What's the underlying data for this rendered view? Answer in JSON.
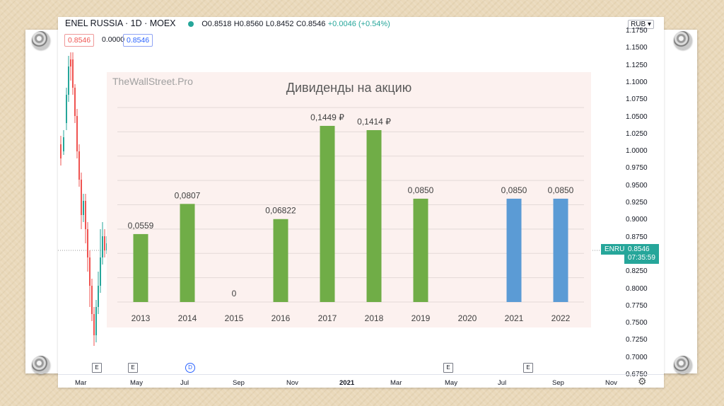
{
  "header": {
    "symbol": "ENEL RUSSIA · 1D · MOEX",
    "open": "O0.8518",
    "high": "H0.8560",
    "low": "L0.8452",
    "close": "C0.8546",
    "change": "+0.0046 (+0.54%)"
  },
  "pills": {
    "red": "0.8546",
    "plain": "0.0000",
    "blue": "0.8546"
  },
  "currency": "RUB",
  "price_axis": [
    "1.1750",
    "1.1500",
    "1.1250",
    "1.1000",
    "1.0750",
    "1.0500",
    "1.0250",
    "1.0000",
    "0.9750",
    "0.9500",
    "0.9250",
    "0.9000",
    "0.8750",
    "0.8500",
    "0.8250",
    "0.8000",
    "0.7750",
    "0.7500",
    "0.7250",
    "0.7000",
    "0.6750"
  ],
  "last_price": {
    "ticker": "ENRU",
    "price": "0.8546",
    "time": "07:35:59"
  },
  "time_axis": [
    "Mar",
    "May",
    "Jul",
    "Sep",
    "Nov",
    "2021",
    "Mar",
    "May",
    "Jul",
    "Sep",
    "Nov"
  ],
  "event_markers": [
    "E",
    "E",
    "D",
    "E",
    "E"
  ],
  "colors": {
    "green_bar": "#70ad47",
    "blue_bar": "#5b9bd5",
    "tv_green": "#26a69a",
    "tv_red": "#ef5350"
  },
  "watermark": "TheWallStreet.Pro",
  "chart_data": {
    "type": "bar",
    "title": "Дивиденды на акцию",
    "categories": [
      "2013",
      "2014",
      "2015",
      "2016",
      "2017",
      "2018",
      "2019",
      "2020",
      "2021",
      "2022"
    ],
    "values": [
      0.0559,
      0.0807,
      0,
      0.06822,
      0.1449,
      0.1414,
      0.085,
      null,
      0.085,
      0.085
    ],
    "data_labels": [
      "0,0559",
      "0,0807",
      "0",
      "0,06822",
      "0,1449 ₽",
      "0,1414 ₽",
      "0,0850",
      "",
      "0,0850",
      "0,0850"
    ],
    "bar_colors": [
      "#70ad47",
      "#70ad47",
      "#70ad47",
      "#70ad47",
      "#70ad47",
      "#70ad47",
      "#70ad47",
      "#70ad47",
      "#5b9bd5",
      "#5b9bd5"
    ],
    "xlabel": "",
    "ylabel": "",
    "ylim": [
      0,
      0.16
    ],
    "grid": true,
    "legend": "none"
  }
}
